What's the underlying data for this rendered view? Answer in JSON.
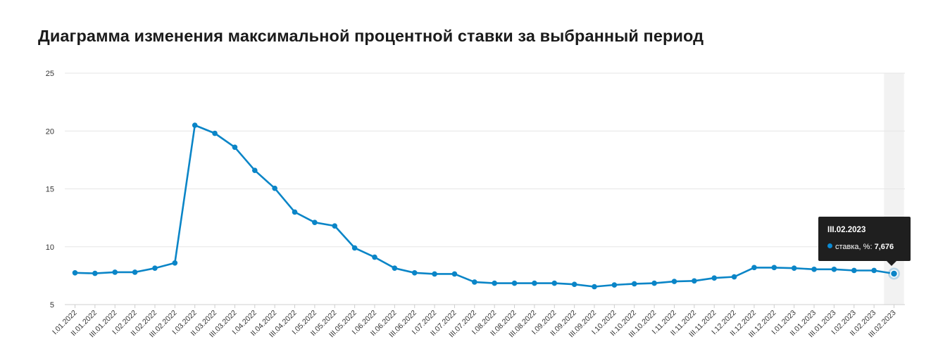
{
  "title": "Диаграмма изменения максимальной процентной ставки за выбранный период",
  "colors": {
    "line": "#0a85c7",
    "grid": "#e6e6e6",
    "highlight_band": "#f2f2f2",
    "tooltip_bg": "#1f1f1f"
  },
  "chart_data": {
    "type": "line",
    "title": "Диаграмма изменения максимальной процентной ставки за выбранный период",
    "xlabel": "",
    "ylabel": "",
    "ylim": [
      5,
      25
    ],
    "yticks": [
      5,
      10,
      15,
      20,
      25
    ],
    "grid": true,
    "categories": [
      "I.01.2022",
      "II.01.2022",
      "III.01.2022",
      "I.02.2022",
      "II.02.2022",
      "III.02.2022",
      "I.03.2022",
      "II.03.2022",
      "III.03.2022",
      "I.04.2022",
      "II.04.2022",
      "III.04.2022",
      "I.05.2022",
      "II.05.2022",
      "III.05.2022",
      "I.06.2022",
      "II.06.2022",
      "III.06.2022",
      "I.07.2022",
      "II.07.2022",
      "III.07.2022",
      "I.08.2022",
      "II.08.2022",
      "III.08.2022",
      "I.09.2022",
      "II.09.2022",
      "III.09.2022",
      "I.10.2022",
      "II.10.2022",
      "III.10.2022",
      "I.11.2022",
      "II.11.2022",
      "III.11.2022",
      "I.12.2022",
      "II.12.2022",
      "III.12.2022",
      "I.01.2023",
      "II.01.2023",
      "III.01.2023",
      "I.02.2023",
      "II.02.2023",
      "III.02.2023"
    ],
    "series": [
      {
        "values": [
          7.75,
          7.7,
          7.8,
          7.8,
          8.15,
          8.6,
          20.5,
          19.8,
          18.6,
          16.6,
          15.05,
          13.0,
          12.1,
          11.8,
          9.9,
          9.1,
          8.15,
          7.75,
          7.65,
          7.65,
          6.95,
          6.85,
          6.85,
          6.85,
          6.85,
          6.75,
          6.55,
          6.7,
          6.8,
          6.85,
          7.0,
          7.05,
          7.3,
          7.4,
          8.2,
          8.2,
          8.15,
          8.05,
          8.05,
          7.95,
          7.95,
          7.676
        ]
      }
    ],
    "tooltip": {
      "date": "III.02.2023",
      "label": "ставка, %:",
      "value": "7,676"
    }
  }
}
